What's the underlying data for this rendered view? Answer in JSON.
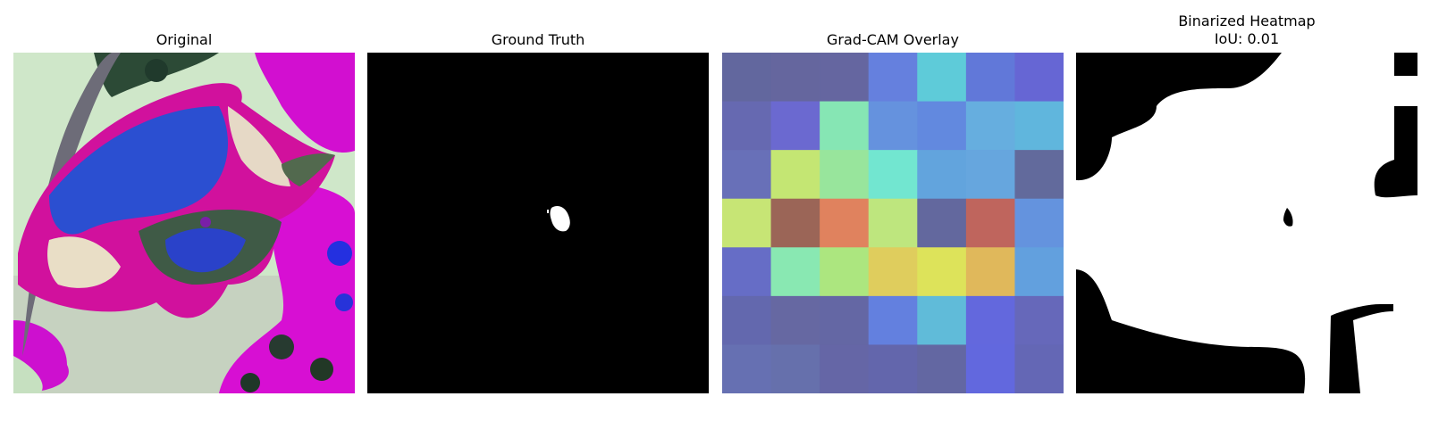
{
  "panels": [
    {
      "title": "Original"
    },
    {
      "title": "Ground Truth"
    },
    {
      "title": "Grad-CAM Overlay"
    },
    {
      "title": "Binarized Heatmap",
      "subtitle": "IoU: 0.01"
    }
  ],
  "gradcam": {
    "cells": [
      [
        "#62679e",
        "#65669e",
        "#6566a0",
        "#6580de",
        "#5ecbd9",
        "#6178d9",
        "#6666d4"
      ],
      [
        "#6669b1",
        "#6b69d0",
        "#86e6b4",
        "#6592de",
        "#6289df",
        "#66aedf",
        "#60b6dd"
      ],
      [
        "#6870b8",
        "#c4e673",
        "#98e59c",
        "#72e6d0",
        "#62a4dd",
        "#66a6de",
        "#626a9c"
      ],
      [
        "#c7e575",
        "#9b6557",
        "#e0825e",
        "#bee67e",
        "#63689e",
        "#bf655d",
        "#6493de"
      ],
      [
        "#666dc6",
        "#89e8b2",
        "#ace67f",
        "#dfcd5d",
        "#dde35a",
        "#e0b85b",
        "#62a0de"
      ],
      [
        "#6368ae",
        "#6668a2",
        "#6467a4",
        "#6380df",
        "#60bbd9",
        "#6368dd",
        "#6668ba"
      ],
      [
        "#6670b2",
        "#6670ac",
        "#6566a6",
        "#6366ac",
        "#6367a2",
        "#6268de",
        "#6467b5"
      ]
    ]
  }
}
